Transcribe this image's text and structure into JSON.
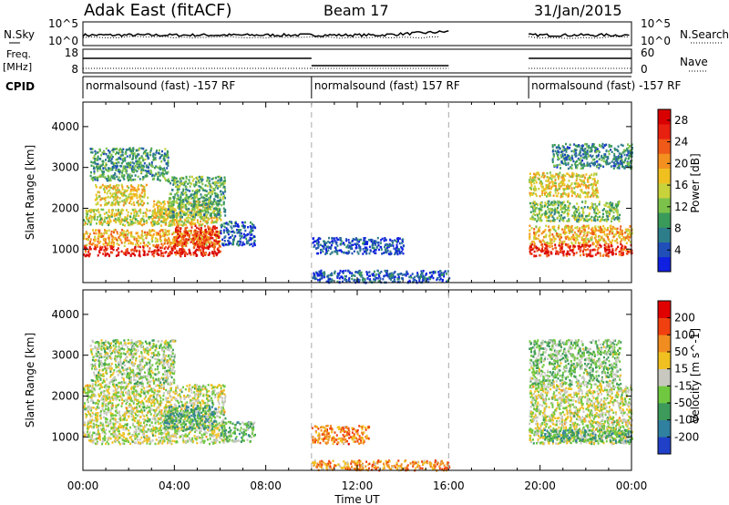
{
  "header": {
    "station": "Adak East (fitACF)",
    "beam": "Beam 17",
    "date": "31/Jan/2015"
  },
  "noise_panel": {
    "left_label": "N.Sky",
    "right_label": "N.Search",
    "left_ticks": [
      "10^5",
      "10^0"
    ],
    "right_ticks": [
      "10^5",
      "10^0"
    ]
  },
  "freq_panel": {
    "left_label_1": "Freq.",
    "left_label_2": "[MHz]",
    "right_label": "Nave",
    "left_ticks": [
      "18",
      "8"
    ],
    "right_ticks": [
      "60",
      "0"
    ]
  },
  "cpid": {
    "label": "CPID",
    "segments": [
      {
        "text": "normalsound (fast) -157 RF",
        "start_hour": 0
      },
      {
        "text": "normalsound (fast) 157 RF",
        "start_hour": 10
      },
      {
        "text": "normalsound (fast) -157 RF",
        "start_hour": 19.5
      }
    ]
  },
  "time_axis": {
    "label": "Time UT",
    "ticks": [
      "00:00",
      "04:00",
      "08:00",
      "12:00",
      "16:00",
      "20:00",
      "00:00"
    ],
    "tick_hours": [
      0,
      4,
      8,
      12,
      16,
      20,
      24
    ],
    "range_hours": [
      0,
      24
    ],
    "dashed_lines_hours": [
      10,
      16
    ]
  },
  "chart_data": [
    {
      "type": "heatmap",
      "panel": "power",
      "ylabel": "Slant Range [km]",
      "yticks": [
        "1000",
        "2000",
        "3000",
        "4000"
      ],
      "ytick_values": [
        1000,
        2000,
        3000,
        4000
      ],
      "ylim": [
        180,
        4600
      ],
      "colorbar": {
        "label": "Power [dB]",
        "ticks": [
          "4",
          "8",
          "12",
          "16",
          "20",
          "24",
          "28"
        ],
        "tick_values": [
          4,
          8,
          12,
          16,
          20,
          24,
          28
        ],
        "range": [
          0,
          30
        ],
        "colors": [
          "#1020e0",
          "#204fb8",
          "#2e7d8a",
          "#3a9a5a",
          "#7cc24a",
          "#c8d23a",
          "#f0c020",
          "#f49020",
          "#f05a18",
          "#e82010",
          "#d80000"
        ]
      },
      "regions": [
        {
          "hours": [
            0,
            6.0
          ],
          "km": [
            850,
            1100
          ],
          "level": 0.9
        },
        {
          "hours": [
            0,
            6.0
          ],
          "km": [
            1100,
            1500
          ],
          "level": 0.62
        },
        {
          "hours": [
            0,
            4.0
          ],
          "km": [
            1600,
            2000
          ],
          "level": 0.5
        },
        {
          "hours": [
            0.5,
            2.8
          ],
          "km": [
            2100,
            2600
          ],
          "level": 0.55
        },
        {
          "hours": [
            0.3,
            3.7
          ],
          "km": [
            2700,
            3500
          ],
          "level": 0.3
        },
        {
          "hours": [
            3.0,
            6.0
          ],
          "km": [
            1600,
            2200
          ],
          "level": 0.55
        },
        {
          "hours": [
            3.7,
            6.2
          ],
          "km": [
            1800,
            2800
          ],
          "level": 0.35
        },
        {
          "hours": [
            4.0,
            6.0
          ],
          "km": [
            1100,
            1600
          ],
          "level": 0.85
        },
        {
          "hours": [
            6.0,
            7.5
          ],
          "km": [
            1100,
            1700
          ],
          "level": 0.15
        },
        {
          "hours": [
            10.0,
            14.0
          ],
          "km": [
            900,
            1300
          ],
          "level": 0.12
        },
        {
          "hours": [
            10.0,
            16.0
          ],
          "km": [
            200,
            500
          ],
          "level": 0.15
        },
        {
          "hours": [
            19.5,
            24
          ],
          "km": [
            850,
            1150
          ],
          "level": 0.88
        },
        {
          "hours": [
            19.5,
            24
          ],
          "km": [
            1150,
            1600
          ],
          "level": 0.62
        },
        {
          "hours": [
            19.5,
            23.5
          ],
          "km": [
            1700,
            2200
          ],
          "level": 0.4
        },
        {
          "hours": [
            19.5,
            22.5
          ],
          "km": [
            2300,
            2900
          ],
          "level": 0.55
        },
        {
          "hours": [
            20.5,
            24
          ],
          "km": [
            3000,
            3600
          ],
          "level": 0.25
        }
      ]
    },
    {
      "type": "heatmap",
      "panel": "velocity",
      "ylabel": "Slant Range [km]",
      "yticks": [
        "1000",
        "2000",
        "3000",
        "4000"
      ],
      "ytick_values": [
        1000,
        2000,
        3000,
        4000
      ],
      "ylim": [
        180,
        4600
      ],
      "colorbar": {
        "label": "Velocity [m s^-1]",
        "ticks": [
          "200",
          "100",
          "50",
          "15",
          "-15",
          "-50",
          "-100",
          "-200"
        ],
        "colors": [
          "#2040c8",
          "#3080a0",
          "#3c9a5a",
          "#70c840",
          "#c8c8c0",
          "#f0c020",
          "#f08c20",
          "#f04010",
          "#e00000"
        ]
      },
      "regions": [
        {
          "hours": [
            0,
            6.2
          ],
          "km": [
            850,
            2300
          ],
          "level": 0.5
        },
        {
          "hours": [
            0.3,
            4.0
          ],
          "km": [
            2300,
            3400
          ],
          "level": 0.45
        },
        {
          "hours": [
            3.5,
            5.8
          ],
          "km": [
            1200,
            1800
          ],
          "level": 0.3
        },
        {
          "hours": [
            6.0,
            7.5
          ],
          "km": [
            900,
            1400
          ],
          "level": 0.35
        },
        {
          "hours": [
            10.0,
            12.5
          ],
          "km": [
            850,
            1300
          ],
          "level": 0.72
        },
        {
          "hours": [
            10.0,
            16.0
          ],
          "km": [
            200,
            450
          ],
          "level": 0.7
        },
        {
          "hours": [
            19.5,
            24
          ],
          "km": [
            850,
            2300
          ],
          "level": 0.5
        },
        {
          "hours": [
            19.5,
            23.5
          ],
          "km": [
            2300,
            3400
          ],
          "level": 0.4
        },
        {
          "hours": [
            20.0,
            24
          ],
          "km": [
            900,
            1200
          ],
          "level": 0.3
        }
      ]
    }
  ]
}
